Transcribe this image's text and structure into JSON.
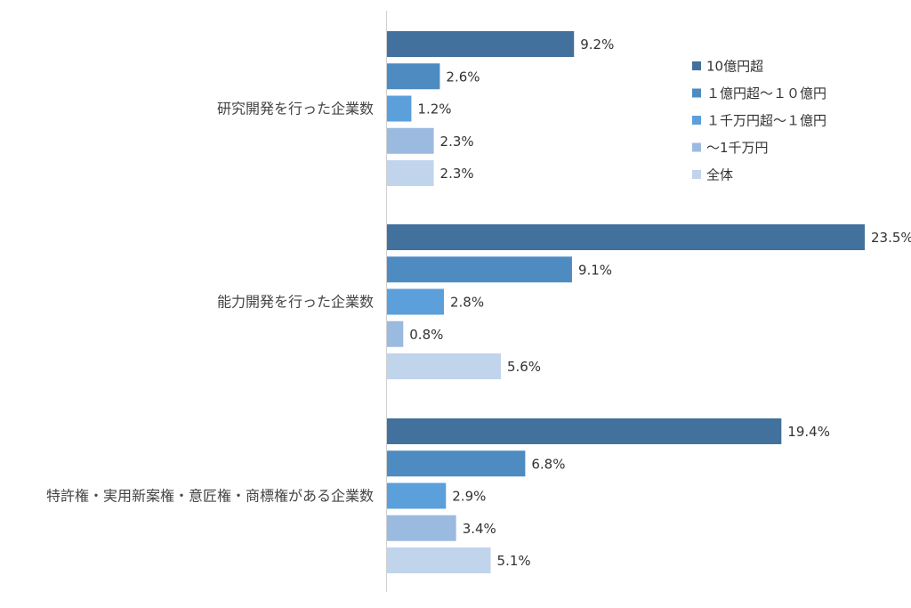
{
  "chart_data": {
    "type": "bar",
    "orientation": "horizontal",
    "categories": [
      "研究開発を行った企業数",
      "能力開発を行った企業数",
      "特許権・実用新案権・意匠権・商標権がある企業数"
    ],
    "series": [
      {
        "name": "10億円超",
        "color": "#41719c",
        "values": [
          9.2,
          23.5,
          19.4
        ],
        "labels": [
          "9.2%",
          "23.5%",
          "19.4%"
        ]
      },
      {
        "name": "１億円超～１０億円",
        "color": "#4e8bc1",
        "values": [
          2.6,
          9.1,
          6.8
        ],
        "labels": [
          "2.6%",
          "9.1%",
          "6.8%"
        ]
      },
      {
        "name": "１千万円超～１億円",
        "color": "#5b9fdb",
        "values": [
          1.2,
          2.8,
          2.9
        ],
        "labels": [
          "1.2%",
          "2.8%",
          "2.9%"
        ]
      },
      {
        "name": "～1千万円",
        "color": "#9bbae0",
        "values": [
          2.3,
          0.8,
          3.4
        ],
        "labels": [
          "2.3%",
          "0.8%",
          "3.4%"
        ]
      },
      {
        "name": "全体",
        "color": "#c0d4ec",
        "values": [
          2.3,
          5.6,
          5.1
        ],
        "labels": [
          "2.3%",
          "5.6%",
          "5.1%"
        ]
      }
    ],
    "xlim": [
      0,
      23.5
    ],
    "grid": false,
    "legend_position": "top-right"
  }
}
